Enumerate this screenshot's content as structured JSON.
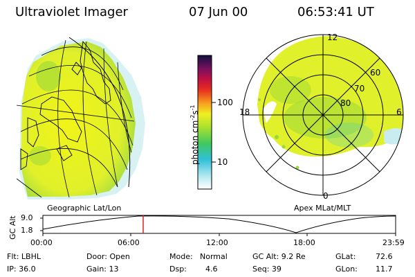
{
  "header": {
    "title": "Ultraviolet Imager",
    "date": "07 Jun 00",
    "time": "06:53:41 UT"
  },
  "left_panel": {
    "label": "Geographic Lat/Lon"
  },
  "right_panel": {
    "label": "Apex MLat/MLT",
    "mlt_labels": {
      "top": "12",
      "left": "18",
      "right": "6",
      "bottom": "0"
    },
    "lat_labels": [
      "60",
      "70",
      "80"
    ]
  },
  "colorbar": {
    "unit_label": "photon cm",
    "unit_exp1": "-2",
    "unit_mid": "s",
    "unit_exp2": "-1",
    "tick_100": "100",
    "tick_10": "10"
  },
  "timeline": {
    "axis_title": "GC Alt",
    "y_top": "9.0",
    "y_bottom": "1.8",
    "x_ticks": [
      "00:00",
      "06:00",
      "12:00",
      "18:00",
      "23:59"
    ]
  },
  "info": {
    "flt": "Flt: LBHL",
    "ip": "IP: 36.0",
    "door": "Door: Open",
    "gain": "Gain: 13",
    "mode_label": "Mode:",
    "mode_value": "Normal",
    "dsp_label": "Dsp:",
    "dsp_value": "4.6",
    "gcalt": "GC Alt: 9.2 Re",
    "seq": "Seq: 39",
    "glat_label": "GLat:",
    "glat_value": "72.6",
    "glon_label": "GLon:",
    "glon_value": "11.7"
  },
  "colors": {
    "aurora_yellow": "#e8f020",
    "aurora_green": "#9ad83a",
    "cyan": "#40c8d8",
    "marker_red": "#e02020"
  }
}
